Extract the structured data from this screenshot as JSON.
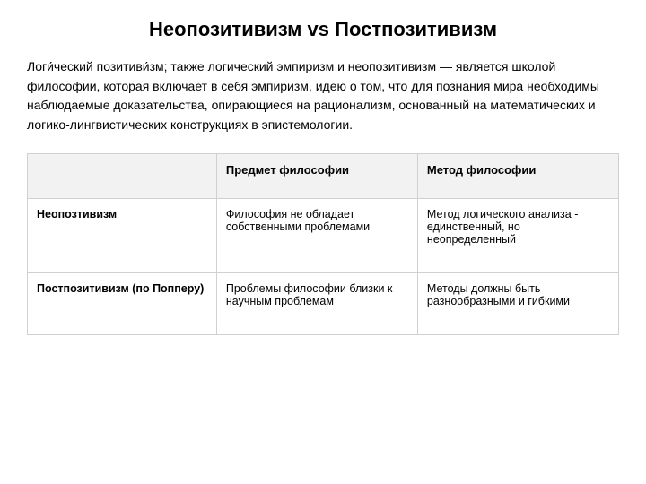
{
  "title": "Неопозитивизм vs Постпозитивизм",
  "intro": "Логи́ческий позитиви́зм; также логический эмпиризм и неопозитивизм — является школой философии, которая включает в себя эмпиризм, идею о том, что для познания мира необходимы наблюдаемые доказательства, опирающиеся на рационализм, основанный на математических и логико-лингвистических конструкциях в эпистемологии.",
  "table": {
    "columns": [
      "",
      "Предмет философии",
      "Метод философии"
    ],
    "rows": [
      {
        "label": "Неопозтивизм",
        "cells": [
          "Философия не обладает собственными проблемами",
          "Метод логического анализа - единственный, но неопределенный"
        ]
      },
      {
        "label": "Постпозитивизм (по Попперу)",
        "cells": [
          "Проблемы философии близки к научным проблемам",
          "Методы должны быть разнообразными и гибкими"
        ]
      }
    ],
    "header_bg": "#f2f2f2",
    "border_color": "#d0d0d0",
    "font_family": "Arial",
    "title_fontsize": 22,
    "body_fontsize": 14,
    "cell_fontsize": 12.5
  },
  "background_color": "#ffffff",
  "text_color": "#000000"
}
